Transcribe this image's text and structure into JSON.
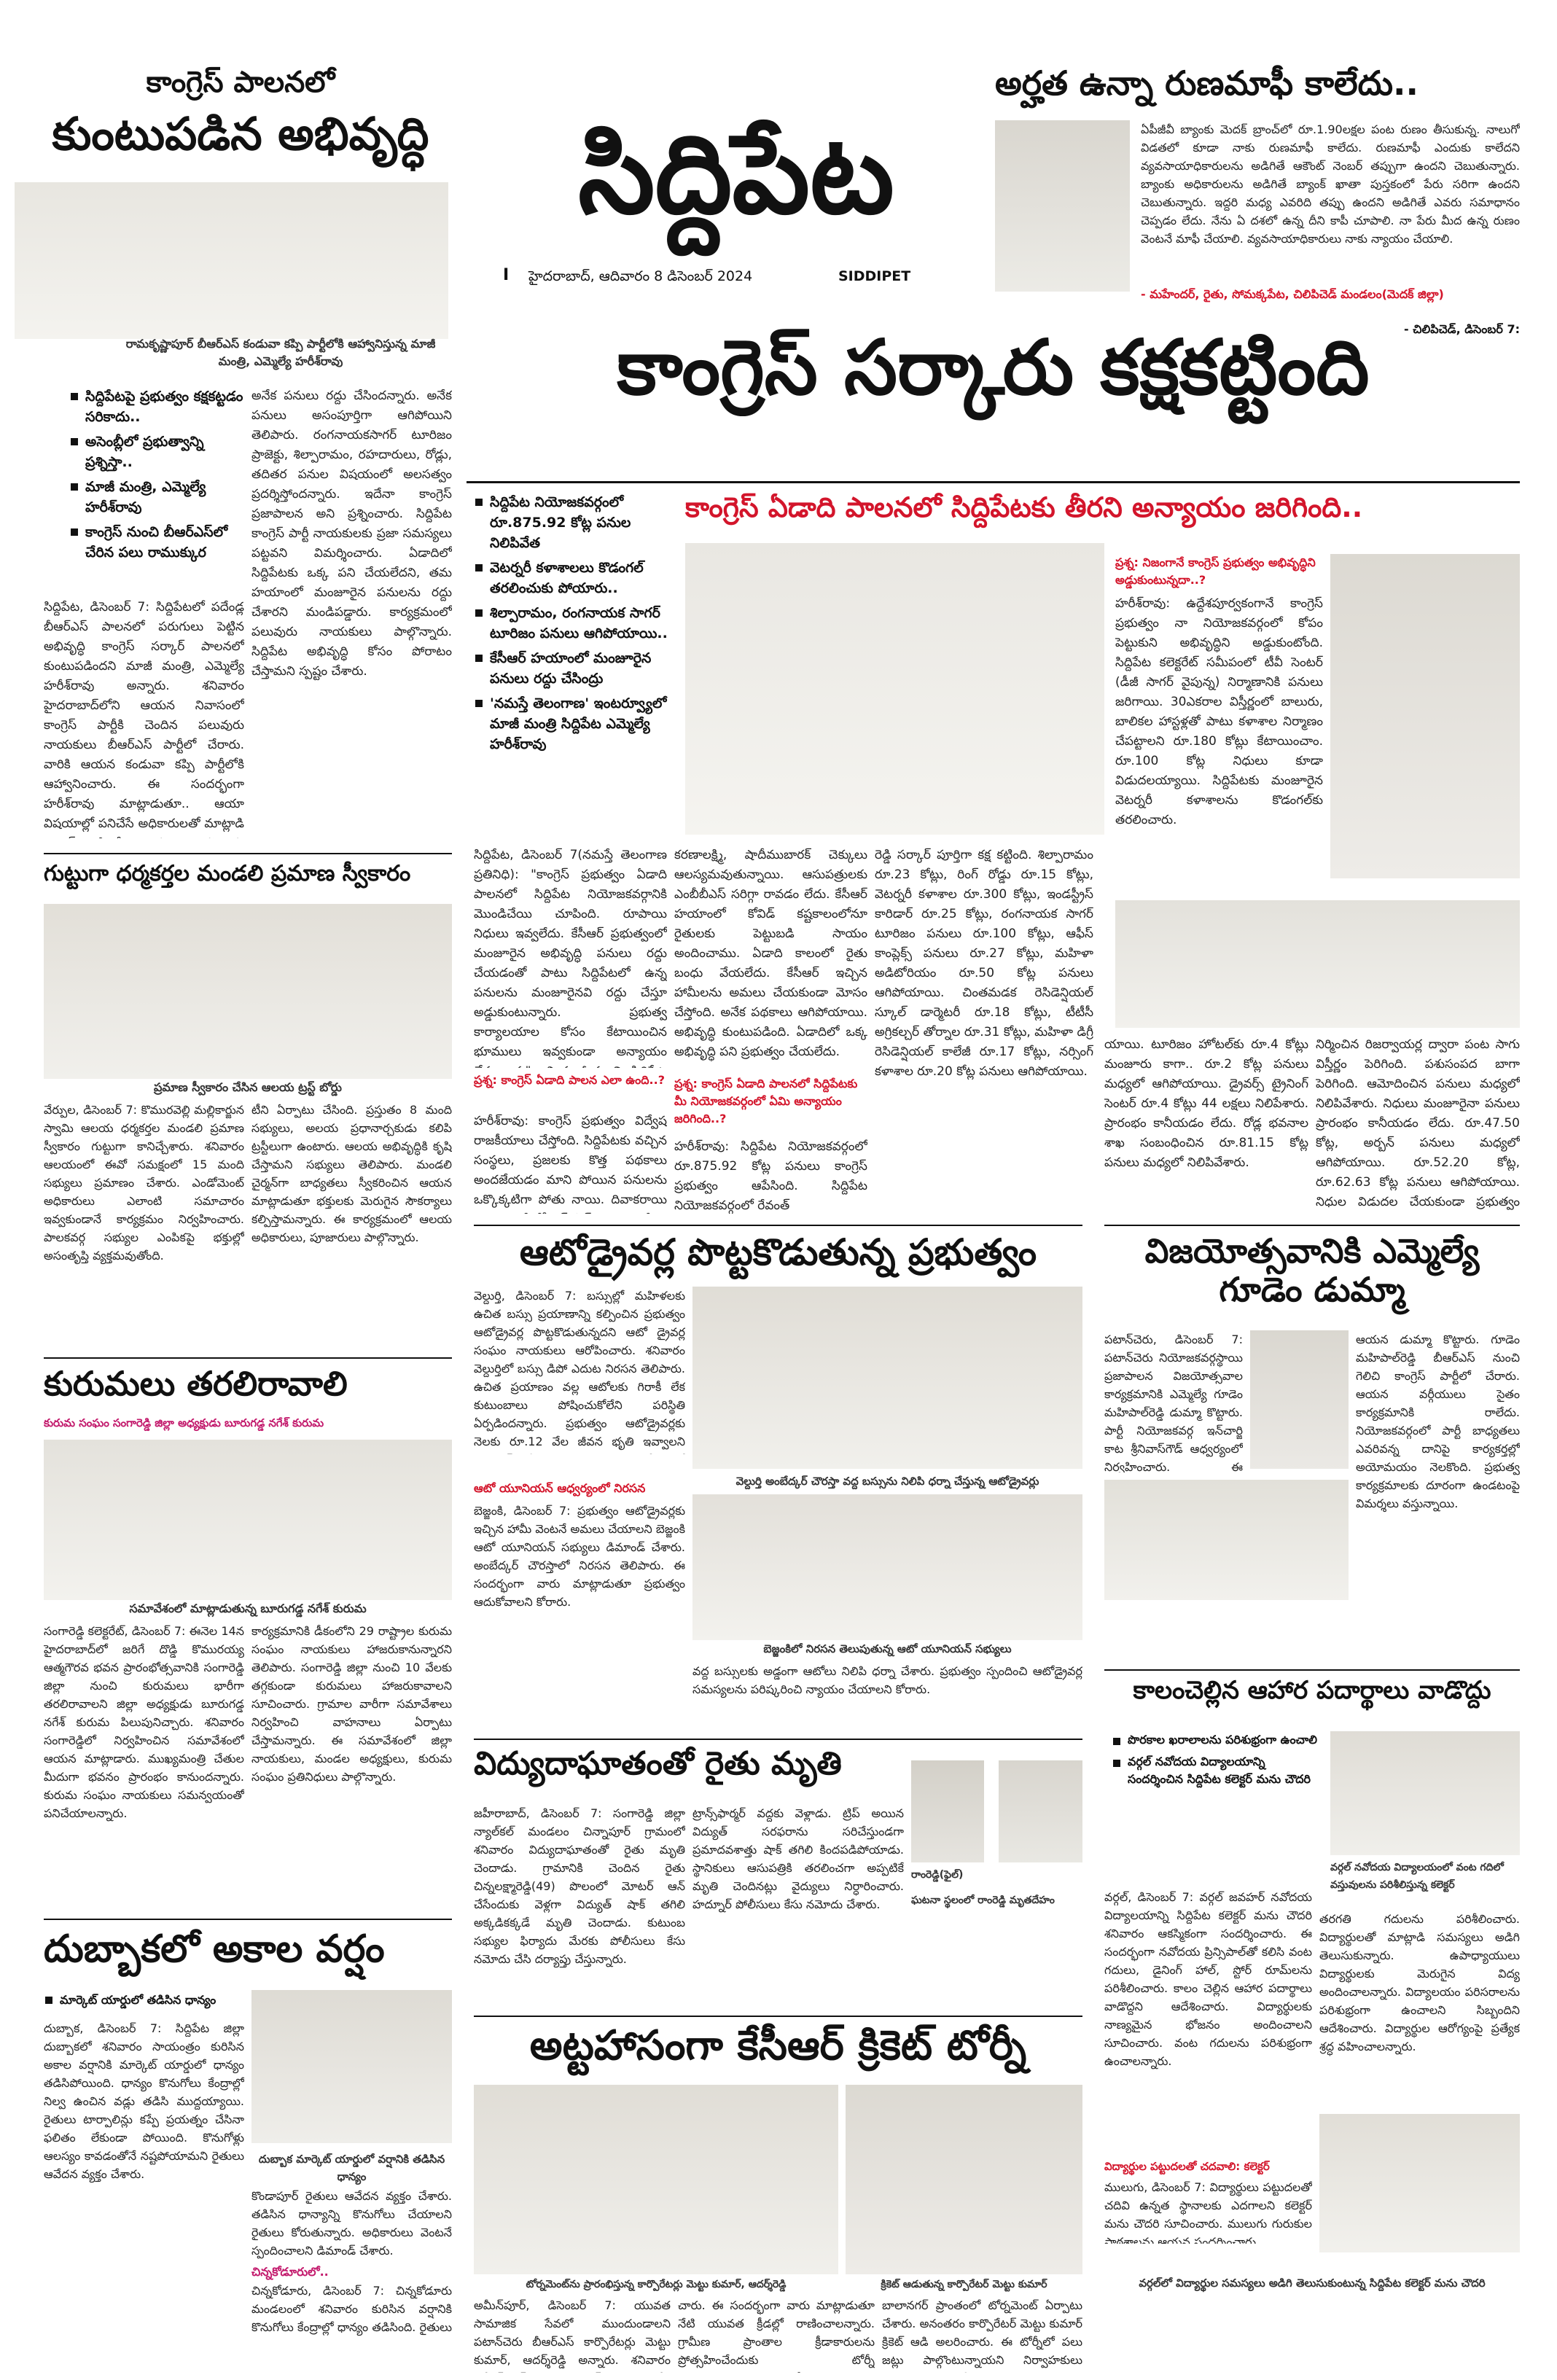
{
  "masthead": {
    "title": "సిద్దిపేట",
    "dateline": "హైదరాబాద్, ఆదివారం 8 డిసెంబర్ 2024",
    "page_no": "I",
    "english_name": "SIDDIPET"
  },
  "top_left": {
    "kicker": "కాంగ్రెస్ పాలనలో",
    "headline": "కుంటుపడిన అభివృద్ధి",
    "caption": "రామకృష్ణాపూర్ బీఆర్ఎస్ కండువా కప్పి పార్టీలోకి ఆహ్వానిస్తున్న మాజీ మంత్రి, ఎమ్మెల్యే హరీశ్‌రావు",
    "bullets": [
      "సిద్దిపేటపై ప్రభుత్వం కక్షకట్టడం సరికాదు..",
      "అసెంబ్లీలో ప్రభుత్వాన్ని ప్రశ్నిస్తా..",
      "మాజీ మంత్రి, ఎమ్మెల్యే హరీశ్‌రావు",
      "కాంగ్రెస్ నుంచి బీఆర్ఎస్‌లో చేరిన పలు రాముక్కుర"
    ],
    "col1": "సిద్దిపేట, డిసెంబర్ 7: సిద్దిపేటలో పదేండ్ల బీఆర్ఎస్ పాలనలో పరుగులు పెట్టిన అభివృద్ధి కాంగ్రెస్ సర్కార్ పాలనలో కుంటుపడిందని మాజీ మంత్రి, ఎమ్మెల్యే హరీశ్‌రావు అన్నారు. శనివారం హైదరాబాద్‌లోని ఆయన నివాసంలో కాంగ్రెస్ పార్టీకి చెందిన పలువురు నాయకులు బీఆర్ఎస్ పార్టీలో చేరారు. వారికి ఆయన కండువా కప్పి పార్టీలోకి ఆహ్వానించారు. ఈ సందర్భంగా హరీశ్‌రావు మాట్లాడుతూ.. ఆయా విషయాల్లో పనిచేసే అధికారులతో మాట్లాడి కాంగ్రెస్ సిద్దిపేట ప్రజల కష్టాలను పట్టించుకోవడం లేదన్నారు. కేసీఆర్ ప్రభుత్వంలో మంజూరైన",
    "col2": "అనేక పనులు రద్దు చేసిందన్నారు. అనేక పనులు అసంపూర్తిగా ఆగిపోయిని తెలిపారు. రంగనాయకసాగర్ టూరిజం ప్రాజెక్టు, శిల్పారామం, రహదారులు, రోడ్లు, తదితర పనుల విషయంలో అలసత్వం ప్రదర్శిస్తోందన్నారు. ఇదేనా కాంగ్రెస్ ప్రజాపాలన అని ప్రశ్నించారు. సిద్దిపేట కాంగ్రెస్ పార్టీ నాయకులకు ప్రజా సమస్యలు పట్టవని విమర్శించారు. ఏడాదిలో సిద్దిపేటకు ఒక్క పని చేయలేదని, తమ హయాంలో మంజూరైన పనులను రద్దు చేశారని మండిపడ్డారు. కార్యక్రమంలో పలువురు నాయకులు పాల్గొన్నారు. సిద్దిపేట అభివృద్ధి కోసం పోరాటం చేస్తామని స్పష్టం చేశారు."
  },
  "top_right": {
    "headline": "అర్హత ఉన్నా రుణమాఫీ కాలేదు..",
    "body": "ఏపీజీవీ బ్యాంకు మెదక్ బ్రాంచ్‌లో రూ.1.90లక్షల పంట రుణం తీసుకున్న. నాలుగో విడతలో కూడా నాకు రుణమాఫీ కాలేదు. రుణమాఫీ ఎందుకు కాలేదని వ్యవసాయాధికారులను అడిగితే ఆకౌంట్ నెంబర్ తప్పుగా ఉందని చెబుతున్నారు. బ్యాంకు అధికారులను అడిగితే బ్యాంక్ ఖాతా పుస్తకంలో పేరు సరిగా ఉందని చెబుతున్నారు. ఇద్దరి మధ్య ఎవరిది తప్పు ఉందని అడిగితే ఎవరు సమాధానం చెప్పడం లేదు. నేను ఏ దశలో ఉన్న దీని కాపీ చూపాలి. నా పేరు మీద ఉన్న రుణం వెంటనే మాఫీ చేయాలి. వ్యవసాయాధికారులు నాకు న్యాయం చేయాలి.",
    "quote": "- మహేందర్, రైతు, సోమక్కపేట, చిలిపిచెడ్ మండలం(మెదక్ జిల్లా)",
    "dateline": "- చిలిపిచెడ్, డిసెంబర్ 7:"
  },
  "lead": {
    "headline": "కాంగ్రెస్ సర్కారు కక్షకట్టింది",
    "subhead": "కాంగ్రెస్ ఏడాది పాలనలో సిద్దిపేటకు తీరని అన్యాయం జరిగింది..",
    "bullets": [
      "సిద్దిపేట నియోజకవర్గంలో రూ.875.92 కోట్ల పనుల నిలిపివేత",
      "వెటర్నరీ కళాశాలలు కొడంగల్‌ తరలించుకు పోయారు..",
      "శిల్పారామం, రంగనాయక సాగర్ టూరిజం పనులు ఆగిపోయాయి..",
      "కేసీఆర్ హయాంలో మంజూరైన పనులు రద్దు చేసింద్రు",
      "'నమస్తే తెలంగాణ' ఇంటర్వ్యూలో మాజీ మంత్రి సిద్దిపేట ఎమ్మెల్యే హరీశ్‌రావు"
    ],
    "c1": "సిద్దిపేట, డిసెంబర్ 7(నమస్తే తెలంగాణ ప్రతినిధి): \"కాంగ్రెస్ ప్రభుత్వం ఏడాది పాలనలో సిద్దిపేట నియోజకవర్గానికి మొండిచేయి చూపింది. రూపాయి నిధులు ఇవ్వలేదు. కేసీఆర్ ప్రభుత్వంలో మంజూరైన అభివృద్ధి పనులు రద్దు చేయడంతో పాటు సిద్దిపేటలో ఉన్న పనులను మంజూరైనవి రద్దు చేస్తూ అడ్డుకుంటున్నారు. ప్రభుత్వ కార్యాలయాల కోసం కేటాయించిన భూములు ఇవ్వకుండా అన్యాయం చేస్తున్నారు\" అని మాజీ మంత్రి, సిద్దిపేట ఎమ్మెల్యే హరీశ్‌రావు మండిపడ్డారు. శనివారం 'నమస్తే తెలంగాణ'తో ఆయన ప్రత్యేక ఇంటర్వ్యూ ఇచ్చారు.",
    "q1": "ప్రశ్న: కాంగ్రెస్ ఏడాది పాలన ఎలా ఉంది..?",
    "c1b": "హరీశ్‌రావు: కాంగ్రెస్ ప్రభుత్వం విద్వేష రాజకీయాలు చేస్తోంది. సిద్దిపేటకు వచ్చిన సంస్థలు, ప్రజలకు కొత్త పథకాలు అందజేయడం మాని పోయిన పనులను ఒక్కొక్కటిగా పోతు నాయి. దివాకరాయి కాలం పోతే కేసీఆర్ కిట్ ఇవ్వడం లేదు. న్యూట్రిషన్ కిట్ అంతే లేదు.",
    "c2": "కరణాలక్ష్మి, షాదీముబారక్ చెక్కులు ఆలస్యమవుతున్నాయి. ఆసుపత్రులకు ఎంబీబీఎస్ సరిగ్గా రావడం లేదు. కేసీఆర్ హయాంలో కోవిడ్ కష్టకాలంలోనూ రైతులకు పెట్టుబడి సాయం అందించాము. ఏడాది కాలంలో రైతు బంధు వేయలేదు. కేసీఆర్ ఇచ్చిన హామీలను అమలు చేయకుండా మోసం చేస్తోంది. అనేక పథకాలు ఆగిపోయాయి. అభివృద్ధి కుంటుపడింది. ఏడాదిలో ఒక్క అభివృద్ధి పని ప్రభుత్వం చేయలేదు.",
    "q2": "ప్రశ్న: కాంగ్రెస్ ఏడాది పాలనలో సిద్దిపేటకు మీ నియోజకవర్గంలో ఏమి అన్యాయం జరిగింది..?",
    "c2b": "హరీశ్‌రావు: సిద్దిపేట నియోజకవర్గంలో రూ.875.92 కోట్ల పనులు కాంగ్రెస్ ప్రభుత్వం ఆపేసింది. సిద్దిపేట నియోజకవర్గంలో రేవంత్",
    "c3": "రెడ్డి సర్కార్ పూర్తిగా కక్ష కట్టింది. శిల్పారామం రూ.23 కోట్లు, రింగ్ రోడ్డు రూ.15 కోట్లు, వెటర్నరీ కళాశాల రూ.300 కోట్లు, ఇండస్ట్రీస్ కారిడార్ రూ.25 కోట్లు, రంగనాయక సాగర్ టూరిజం పనులు రూ.100 కోట్లు, ఆఫీస్ కాంప్లెక్స్ పనులు రూ.27 కోట్లు, మహిళా అడిటోరియం రూ.50 కోట్ల పనులు ఆగిపోయాయి. చింతమడక రెసిడెన్షియల్ స్కూల్ డార్మెటరీ రూ.18 కోట్లు, టీటీసీ అగ్రికల్చర్ తోర్నాల రూ.31 కోట్లు, మహిళా డిగ్రీ రెసిడెన్షియల్ కాలేజీ రూ.17 కోట్లు, నర్సింగ్ కళాశాల రూ.20 కోట్ల పనులు ఆగిపోయాయి.",
    "q3": "ప్రశ్న: నిజంగానే కాంగ్రెస్ ప్రభుత్వం అభివృద్ధిని అడ్డుకుంటున్నదా..?",
    "c4": "హరీశ్‌రావు: ఉద్దేశపూర్వకంగానే కాంగ్రెస్ ప్రభుత్వం నా నియోజకవర్గంలో కోపం పెట్టుకుని అభివృద్ధిని అడ్డుకుంటోంది. సిద్దిపేట కలెక్టరేట్ సమీపంలో టీవీ సెంటర్ (డీజీ సాగర్ వైపున్న) నిర్మాణానికి పనులు జరిగాయి. 30ఎకరాల విస్తీర్ణంలో బాలురు, బాలికల హాస్టళ్లతో పాటు కళాశాల నిర్మాణం చేపట్టాలని రూ.180 కోట్లు కేటాయించాం. రూ.100 కోట్ల నిధులు కూడా విడుదలయ్యాయి. సిద్దిపేటకు మంజూరైన వెటర్నరీ కళాశాలను కొడంగల్‌కు తరలించారు.",
    "c5": "యాయి. టూరిజం హోటల్‌కు రూ.4 కోట్లు మంజూరు కాగా.. రూ.2 కోట్ల పనులు మధ్యలో ఆగిపోయాయి. డ్రైవర్స్ ట్రైనింగ్ సెంటర్ రూ.4 కోట్లు 44 లక్షలు నిలిపేశారు. ప్రారంభం కానీయడం లేదు. రోడ్ల భవనాల శాఖ సంబంధించిన రూ.81.15 కోట్ల పనులు మధ్యలో నిలిపివేశారు.",
    "c6": "నిర్మించిన రిజర్వాయర్ల ద్వారా పంట సాగు విస్తీర్ణం పెరిగింది. పశుసంపద బాగా పెరిగింది. ఆమోదించిన పనులు మధ్యలో నిలిపివేశారు. నిధులు మంజూరైనా పనులు ప్రారంభం కానీయడం లేదు. రూ.47.50 కోట్ల, అర్బన్ పనులు మధ్యలో ఆగిపోయాయి. రూ.52.20 కోట్ల, రూ.62.63 కోట్ల పనులు ఆగిపోయాయి. నిధుల విడుదల చేయకుండా ప్రభుత్వం సిద్దిపేట అభివృద్ధిని అడ్డుకుంటున్నది."
  },
  "guttuga": {
    "headline": "గుట్టుగా ధర్మకర్తల మండలి ప్రమాణ స్వీకారం",
    "caption": "ప్రమాణ స్వీకారం చేసిన ఆలయ ట్రస్ట్ బోర్డు",
    "col1": "వేర్పుల, డిసెంబర్ 7: కొమురవెల్లి మల్లికార్జున స్వామి ఆలయ ధర్మకర్తల మండలి ప్రమాణ స్వీకారం గుట్టుగా కానిచ్చేశారు. శనివారం ఆలయంలో ఈవో సమక్షంలో 15 మంది సభ్యులు ప్రమాణం చేశారు. ఎండోమెంట్ అధికారులు ఎలాంటి సమాచారం ఇవ్వకుండానే కార్యక్రమం నిర్వహించారు. పాలకవర్గ సభ్యుల ఎంపికపై భక్తుల్లో అసంతృప్తి వ్యక్తమవుతోంది.",
    "col2": "టీని ఏర్పాటు చేసింది. ప్రస్తుతం 8 మంది సభ్యులు, అలయ ప్రధానార్చకుడు కలిపి ట్రస్టీలుగా ఉంటారు. ఆలయ అభివృద్ధికి కృషి చేస్తామని సభ్యులు తెలిపారు. మండలి చైర్మన్‌గా బాధ్యతలు స్వీకరించిన ఆయన మాట్లాడుతూ భక్తులకు మెరుగైన సౌకర్యాలు కల్పిస్తామన్నారు. ఈ కార్యక్రమంలో ఆలయ అధికారులు, పూజారులు పాల్గొన్నారు."
  },
  "kurumalu": {
    "headline": "కురుమలు తరలిరావాలి",
    "subhead": "కురుమ సంఘం సంగారెడ్డి జిల్లా అధ్యక్షుడు బూరుగడ్డ నగేశ్ కురుమ",
    "caption": "సమావేశంలో మాట్లాడుతున్న బూరుగడ్డ నగేశ్ కురుమ",
    "col1": "సంగారెడ్డి కలెక్టరేట్, డిసెంబర్ 7: ఈనెల 14న హైదరాబాద్‌లో జరిగే దొడ్డి కొమురయ్య ఆత్మగౌరవ భవన ప్రారంభోత్సవానికి సంగారెడ్డి జిల్లా నుంచి కురుమలు భారీగా తరలిరావాలని జిల్లా అధ్యక్షుడు బూరుగడ్డ నగేశ్ కురుమ పిలుపునిచ్చారు. శనివారం సంగారెడ్డిలో నిర్వహించిన సమావేశంలో ఆయన మాట్లాడారు. ముఖ్యమంత్రి చేతుల మీదుగా భవనం ప్రారంభం కానుందన్నారు. కురుమ సంఘం నాయకులు సమన్వయంతో పనిచేయాలన్నారు.",
    "col2": "కార్యక్రమానికి డీకంలోని 29 రాష్ట్రాల కురుమ సంఘం నాయకులు హాజరుకానున్నారని తెలిపారు. సంగారెడ్డి జిల్లా నుంచి 10 వేలకు తగ్గకుండా కురుమలు హాజరుకావాలని సూచించారు. గ్రామాల వారీగా సమావేశాలు నిర్వహించి వాహనాలు ఏర్పాటు చేస్తామన్నారు. ఈ సమావేశంలో జిల్లా నాయకులు, మండల అధ్యక్షులు, కురుమ సంఘం ప్రతినిధులు పాల్గొన్నారు."
  },
  "dubbaka": {
    "headline": "దుబ్బాకలో అకాల వర్షం",
    "bullet": "మార్కెట్ యార్డులో తడిసిన ధాన్యం",
    "col1": "దుబ్బాక, డిసెంబర్ 7: సిద్దిపేట జిల్లా దుబ్బాకలో శనివారం సాయంత్రం కురిసిన అకాల వర్షానికి మార్కెట్ యార్డులో ధాన్యం తడిసిపోయింది. ధాన్యం కొనుగోలు కేంద్రాల్లో నిల్వ ఉంచిన వడ్లు తడిసి ముద్దయ్యాయి. రైతులు టార్పాలిన్లు కప్పే ప్రయత్నం చేసినా ఫలితం లేకుండా పోయింది. కొనుగోళ్లు ఆలస్యం కావడంతోనే నష్టపోయామని రైతులు ఆవేదన వ్యక్తం చేశారు.",
    "caption": "దుబ్బాక మార్కెట్ యార్డులో వర్షానికి తడిసిన ధాన్యం",
    "col2": "కొండాపూర్ రైతులు ఆవేదన వ్యక్తం చేశారు. తడిసిన ధాన్యాన్ని కొనుగోలు చేయాలని రైతులు కోరుతున్నారు. అధికారులు వెంటనే స్పందించాలని డిమాండ్ చేశారు.",
    "sub2": "చిన్నకోడూరులో..",
    "col3": "చిన్నకోడూరు, డిసెంబర్ 7: చిన్నకోడూరు మండలంలో శనివారం కురిసిన వర్షానికి కొనుగోలు కేంద్రాల్లో ధాన్యం తడిసింది. రైతులు ఇబ్బందులు పడ్డారు."
  },
  "auto": {
    "headline": "ఆటోడ్రైవర్ల పొట్టకొడుతున్న ప్రభుత్వం",
    "body": "వెల్దుర్తి, డిసెంబర్ 7: బస్సుల్లో మహిళలకు ఉచిత బస్సు ప్రయాణాన్ని కల్పించిన ప్రభుత్వం ఆటోడ్రైవర్ల పొట్టకొడుతున్నదని ఆటో డ్రైవర్ల సంఘం నాయకులు ఆరోపించారు. శనివారం వెల్దుర్తిలో బస్సు డిపో ఎదుట నిరసన తెలిపారు. ఉచిత ప్రయాణం వల్ల ఆటోలకు గిరాకీ లేక కుటుంబాలు పోషించుకోలేని పరిస్థితి ఏర్పడిందన్నారు. ప్రభుత్వం ఆటోడ్రైవర్లకు నెలకు రూ.12 వేల జీవన భృతి ఇవ్వాలని డిమాండ్ చేశారు. ఈ కార్యక్రమంలో ఆటో డ్రైవర్లు పాల్గొన్నారు.",
    "caption": "వెల్దుర్తి అంబేద్కర్ చౌరస్తా వద్ద బస్సును నిలిపి ధర్నా చేస్తున్న ఆటోడ్రైవర్లు",
    "sub": "ఆటో యూనియన్ ఆధ్వర్యంలో నిరసన",
    "body2": "బెజ్జంకి, డిసెంబర్ 7: ప్రభుత్వం ఆటోడ్రైవర్లకు ఇచ్చిన హామీ వెంటనే అమలు చేయాలని బెజ్జంకి ఆటో యూనియన్ సభ్యులు డిమాండ్ చేశారు. అంబేద్కర్ చౌరస్తాలో నిరసన తెలిపారు. ఈ సందర్భంగా వారు మాట్లాడుతూ ప్రభుత్వం ఆదుకోవాలని కోరారు.",
    "caption2": "బెజ్జంకిలో నిరసన తెలుపుతున్న ఆటో యూనియన్ సభ్యులు",
    "body3": "వద్ద బస్సులకు అడ్డంగా ఆటోలు నిలిపి ధర్నా చేశారు. ప్రభుత్వం స్పందించి ఆటోడ్రైవర్ల సమస్యలను పరిష్కరించి న్యాయం చేయాలని కోరారు."
  },
  "vijayotsavam": {
    "headline": "విజయోత్సవానికి ఎమ్మెల్యే గూడెం డుమ్మా",
    "body": "పటాన్‌చెరు, డిసెంబర్ 7: పటాన్‌చెరు నియోజకవర్గస్థాయి ప్రజాపాలన విజయోత్సవాల కార్యక్రమానికి ఎమ్మెల్యే గూడెం మహిపాల్‌రెడ్డి డుమ్మా కొట్టారు. పార్టీ నియోజకవర్గ ఇన్‌చార్జి కాట శ్రీనివాస్‌గౌడ్ ఆధ్వర్యంలో నిర్వహించారు. ఈ కార్యక్రమానికి ముఖ్య అతిథులుగా జిల్లా అధికారులు హాజరయ్యారు. కాంగ్రెస్ పార్టీలో చేరిన ఎమ్మెల్యే గైర్హాజరు కావడం చర్చనీయాంశమైంది.",
    "body2": "ఆయన డుమ్మా కొట్టారు. గూడెం మహిపాల్‌రెడ్డి బీఆర్ఎస్ నుంచి గెలిచి కాంగ్రెస్ పార్టీలో చేరారు. ఆయన వర్గీయులు సైతం కార్యక్రమానికి రాలేదు. నియోజకవర్గంలో పార్టీ బాధ్యతలు ఎవరివన్న దానిపై కార్యకర్తల్లో అయోమయం నెలకొంది. ప్రభుత్వ కార్యక్రమాలకు దూరంగా ఉండటంపై విమర్శలు వస్తున్నాయి."
  },
  "vidyut": {
    "headline": "విద్యుదాఘాతంతో రైతు మృతి",
    "body": "జహీరాబాద్, డిసెంబర్ 7: సంగారెడ్డి జిల్లా న్యాల్‌కల్ మండలం చిన్నాపూర్ గ్రామంలో శనివారం విద్యుదాఘాతంతో రైతు మృతి చెందాడు. గ్రామానికి చెందిన రైతు చిన్నలక్ష్మారెడ్డి(49) పొలంలో మోటర్ ఆన్ చేసేందుకు వెళ్లగా విద్యుత్ షాక్ తగిలి అక్కడికక్కడే మృతి చెందాడు. కుటుంబ సభ్యుల ఫిర్యాదు మేరకు పోలీసులు కేసు నమోదు చేసి దర్యాప్తు చేస్తున్నారు.",
    "body2": "ట్రాన్స్‌ఫార్మర్ వద్దకు వెళ్లాడు. ట్రిప్ అయిన విద్యుత్ సరఫరాను సరిచేస్తుండగా ప్రమాదవశాత్తు షాక్ తగిలి కిందపడిపోయాడు. స్థానికులు ఆసుపత్రికి తరలించగా అప్పటికే మృతి చెందినట్లు వైద్యులు నిర్ధారించారు. హద్నూర్ పోలీసులు కేసు నమోదు చేశారు.",
    "photo_label": "రాంరెడ్డి(ఫైల్)",
    "caption": "ఘటనా స్థలంలో రాంరెడ్డి మృతదేహం"
  },
  "kalam": {
    "headline": "కాలంచెల్లిన ఆహార పదార్థాలు వాడొద్దు",
    "bullets": [
      "పొరకాల ఖరాలాలను పరిశుభ్రంగా ఉంచాలి",
      "వర్గల్ నవోదయ విద్యాలయాన్ని సందర్శించిన సిద్దిపేట కలెక్టర్ మను చౌదరి"
    ],
    "body": "వర్గల్, డిసెంబర్ 7: వర్గల్ జవహర్ నవోదయ విద్యాలయాన్ని సిద్దిపేట కలెక్టర్ మను చౌదరి శనివారం ఆకస్మికంగా సందర్శించారు. ఈ సందర్భంగా నవోదయ ప్రిన్సిపాల్‌తో కలిసి వంట గదులు, డైనింగ్ హాల్, స్టోర్ రూమ్‌లను పరిశీలించారు. కాలం చెల్లిన ఆహార పదార్థాలు వాడొద్దని ఆదేశించారు. విద్యార్థులకు నాణ్యమైన భోజనం అందించాలని సూచించారు. వంట గదులను పరిశుభ్రంగా ఉంచాలన్నారు.",
    "caption_top": "వర్గల్ నవోదయ విద్యాలయంలో వంట గదిలో వస్తువులను పరిశీలిస్తున్న కలెక్టర్",
    "body2": "తరగతి గదులను పరిశీలించారు. విద్యార్థులతో మాట్లాడి సమస్యలు అడిగి తెలుసుకున్నారు. ఉపాధ్యాయులు విద్యార్థులకు మెరుగైన విద్య అందించాలన్నారు. విద్యాలయం పరిసరాలను పరిశుభ్రంగా ఉంచాలని సిబ్బందిని ఆదేశించారు. విద్యార్థుల ఆరోగ్యంపై ప్రత్యేక శ్రద్ధ వహించాలన్నారు.",
    "sub": "విద్యార్థుల పట్టుదలతో చదవాలి: కలెక్టర్",
    "body3": "ములుగు, డిసెంబర్ 7: విద్యార్థులు పట్టుదలతో చదివి ఉన్నత స్థానాలకు ఎదగాలని కలెక్టర్ మను చౌదరి సూచించారు. ములుగు గురుకుల పాఠశాలను ఆయన సందర్శించారు.",
    "caption_bottom": "వర్గల్‌లో విద్యార్థుల సమస్యలు అడిగి తెలుసుకుంటున్న సిద్దిపేట కలెక్టర్ మను చౌదరి"
  },
  "cricket": {
    "headline": "అట్టహాసంగా కేసీఆర్ క్రికెట్ టోర్నీ",
    "caption1": "టోర్నమెంట్‌ను ప్రారంభిస్తున్న కార్పొరేటర్లు మెట్టు కుమార్, ఆదర్శ్‌రెడ్డి",
    "caption2": "క్రికెట్ ఆడుతున్న కార్పొరేటర్ మెట్టు కుమార్",
    "c1": "అమీన్‌పూర్, డిసెంబర్ 7: యువత సామాజిక సేవలో ముందుండాలని పటాన్‌చెరు బీఆర్ఎస్ కార్పొరేటర్లు మెట్టు కుమార్, ఆదర్శ్‌రెడ్డి అన్నారు. శనివారం అమీన్‌పూర్ మున్సిపల్ పరిధిలోని బీరంగూడ గ్రౌండ్‌లో కేసీఆర్ క్రికెట్ టోర్నమెంట్‌ను ప్రారంభించారు. యువత క్రీడల్లో రాణించాలని సూచించారు.",
    "c2": "చారు. ఈ సందర్భంగా వారు మాట్లాడుతూ నేటి యువత క్రీడల్లో రాణించాలన్నారు. గ్రామీణ ప్రాంతాల క్రీడాకారులను ప్రోత్సహించేందుకు టోర్నీ నిర్వహిస్తున్నామన్నారు. క్రీడలు మానసిక ఉల్లాసానికి దోహదం చేస్తాయన్నారు. కేసీఆర్ ఆదర్శంగా నిలవాలన్నారు.",
    "c3": "బాలానగర్‌ ప్రాంతంలో టోర్నమెంట్ ఏర్పాటు చేశారు. అనంతరం కార్పొరేటర్ మెట్టు కుమార్ క్రికెట్ ఆడి అలరించారు. ఈ టోర్నీలో పలు జట్లు పాల్గొంటున్నాయని నిర్వాహకులు తెలిపారు. విజేతలకు బహుమతులు అందజేస్తామన్నారు. కార్యక్రమంలో క్రీడాకారులు పాల్గొన్నారు."
  }
}
